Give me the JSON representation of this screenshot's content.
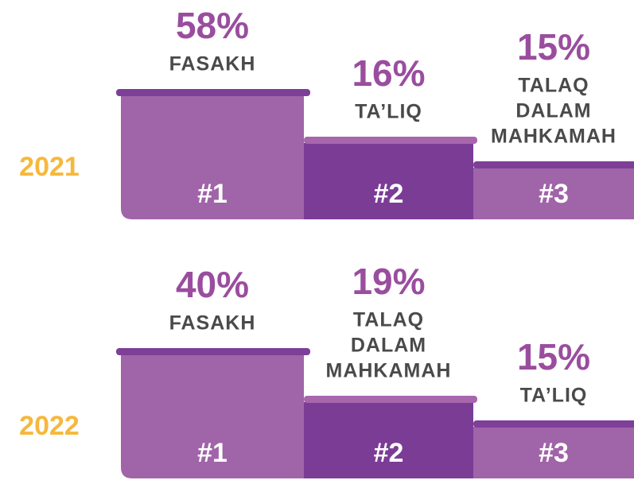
{
  "panels": [
    {
      "year": "2021",
      "items": [
        {
          "percent": "58%",
          "name": [
            "FASAKH"
          ],
          "rank": "#1"
        },
        {
          "percent": "16%",
          "name": [
            "TA’LIQ"
          ],
          "rank": "#2"
        },
        {
          "percent": "15%",
          "name": [
            "TALAQ",
            "DALAM",
            "MAHKAMAH"
          ],
          "rank": "#3"
        }
      ]
    },
    {
      "year": "2022",
      "items": [
        {
          "percent": "40%",
          "name": [
            "FASAKH"
          ],
          "rank": "#1"
        },
        {
          "percent": "19%",
          "name": [
            "TALAQ",
            "DALAM",
            "MAHKAMAH"
          ],
          "rank": "#2"
        },
        {
          "percent": "15%",
          "name": [
            "TA’LIQ"
          ],
          "rank": "#3"
        }
      ]
    }
  ]
}
